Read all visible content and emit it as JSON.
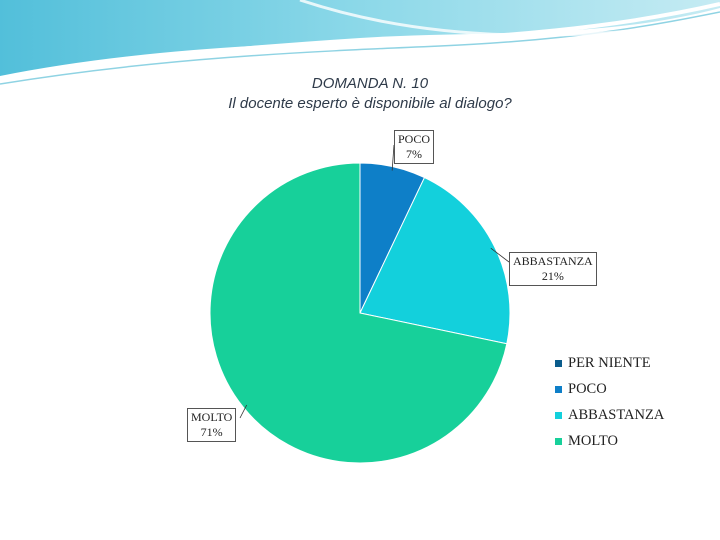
{
  "chart_data": {
    "type": "pie",
    "title": "DOMANDA N. 10",
    "subtitle": "Il docente esperto è disponibile al dialogo?",
    "categories": [
      "PER NIENTE",
      "POCO",
      "ABBASTANZA",
      "MOLTO"
    ],
    "values": [
      0,
      7,
      21,
      71
    ],
    "labels": [
      {
        "category": "POCO",
        "value_text": "7%"
      },
      {
        "category": "ABBASTANZA",
        "value_text": "21%"
      },
      {
        "category": "MOLTO",
        "value_text": "71%"
      }
    ],
    "colors": [
      "#0a5c8c",
      "#0e7fc8",
      "#13d0dc",
      "#17d09a"
    ],
    "legend_position": "right"
  }
}
